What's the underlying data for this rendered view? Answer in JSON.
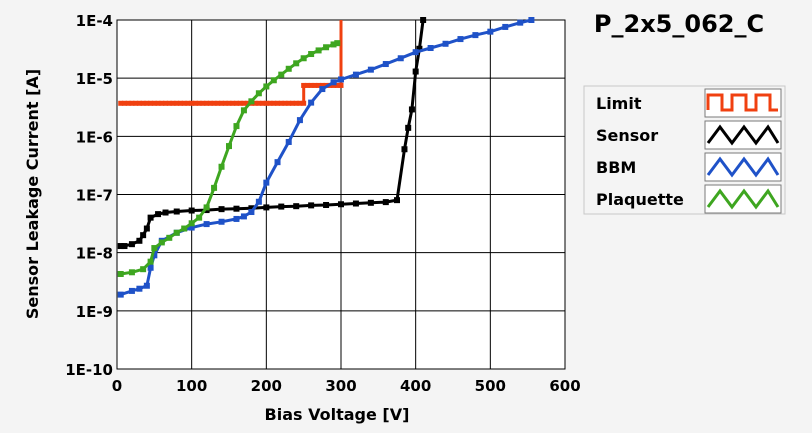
{
  "chart_data": {
    "type": "line",
    "title": "P_2x5_062_C",
    "xlabel": "Bias Voltage [V]",
    "ylabel": "Sensor Leakage Current [A]",
    "xlim": [
      0,
      600
    ],
    "ylim": [
      1e-10,
      0.0001
    ],
    "y_scale": "log",
    "grid": true,
    "legend_position": "right",
    "x_ticks": [
      0,
      100,
      200,
      300,
      400,
      500,
      600
    ],
    "x_tick_labels": [
      "0",
      "100",
      "200",
      "300",
      "400",
      "500",
      "600"
    ],
    "y_ticks": [
      1e-10,
      1e-09,
      1e-08,
      1e-07,
      1e-06,
      1e-05,
      0.0001
    ],
    "y_tick_labels": [
      "1E-10",
      "1E-9",
      "1E-8",
      "1E-7",
      "1E-6",
      "1E-5",
      "1E-4"
    ],
    "series": [
      {
        "name": "Limit",
        "color": "#f04010",
        "style": "step",
        "points": [
          [
            5,
            3.7e-06
          ],
          [
            250,
            3.7e-06
          ],
          [
            250,
            7.5e-06
          ],
          [
            300,
            7.5e-06
          ],
          [
            300,
            0.0001
          ]
        ]
      },
      {
        "name": "Sensor",
        "color": "#000000",
        "points": [
          [
            5,
            1.3e-08
          ],
          [
            10,
            1.3e-08
          ],
          [
            20,
            1.4e-08
          ],
          [
            30,
            1.6e-08
          ],
          [
            35,
            2e-08
          ],
          [
            40,
            2.6e-08
          ],
          [
            45,
            4e-08
          ],
          [
            55,
            4.6e-08
          ],
          [
            65,
            4.9e-08
          ],
          [
            80,
            5.1e-08
          ],
          [
            100,
            5.3e-08
          ],
          [
            120,
            5.4e-08
          ],
          [
            140,
            5.6e-08
          ],
          [
            160,
            5.7e-08
          ],
          [
            180,
            5.8e-08
          ],
          [
            200,
            6e-08
          ],
          [
            220,
            6.2e-08
          ],
          [
            240,
            6.3e-08
          ],
          [
            260,
            6.5e-08
          ],
          [
            280,
            6.6e-08
          ],
          [
            300,
            6.8e-08
          ],
          [
            320,
            7e-08
          ],
          [
            340,
            7.2e-08
          ],
          [
            360,
            7.4e-08
          ],
          [
            375,
            8e-08
          ],
          [
            385,
            6e-07
          ],
          [
            390,
            1.4e-06
          ],
          [
            395,
            2.9e-06
          ],
          [
            400,
            1.3e-05
          ],
          [
            405,
            3.2e-05
          ],
          [
            410,
            0.0001
          ]
        ]
      },
      {
        "name": "BBM",
        "color": "#1f52c8",
        "points": [
          [
            5,
            1.9e-09
          ],
          [
            20,
            2.2e-09
          ],
          [
            30,
            2.4e-09
          ],
          [
            40,
            2.7e-09
          ],
          [
            45,
            5.5e-09
          ],
          [
            50,
            9e-09
          ],
          [
            60,
            1.6e-08
          ],
          [
            80,
            2.2e-08
          ],
          [
            100,
            2.7e-08
          ],
          [
            120,
            3.1e-08
          ],
          [
            140,
            3.4e-08
          ],
          [
            160,
            3.8e-08
          ],
          [
            170,
            4.2e-08
          ],
          [
            180,
            5e-08
          ],
          [
            190,
            7.5e-08
          ],
          [
            200,
            1.6e-07
          ],
          [
            215,
            3.6e-07
          ],
          [
            230,
            8e-07
          ],
          [
            245,
            1.9e-06
          ],
          [
            260,
            3.8e-06
          ],
          [
            275,
            6.5e-06
          ],
          [
            290,
            8.5e-06
          ],
          [
            300,
            9.5e-06
          ],
          [
            320,
            1.15e-05
          ],
          [
            340,
            1.4e-05
          ],
          [
            360,
            1.75e-05
          ],
          [
            380,
            2.2e-05
          ],
          [
            400,
            2.8e-05
          ],
          [
            420,
            3.3e-05
          ],
          [
            440,
            3.9e-05
          ],
          [
            460,
            4.7e-05
          ],
          [
            480,
            5.5e-05
          ],
          [
            500,
            6.3e-05
          ],
          [
            520,
            7.6e-05
          ],
          [
            540,
            9e-05
          ],
          [
            555,
            0.0001
          ]
        ]
      },
      {
        "name": "Plaquette",
        "color": "#3ea620",
        "points": [
          [
            5,
            4.3e-09
          ],
          [
            20,
            4.6e-09
          ],
          [
            35,
            5.2e-09
          ],
          [
            45,
            7e-09
          ],
          [
            50,
            1.2e-08
          ],
          [
            60,
            1.5e-08
          ],
          [
            70,
            1.8e-08
          ],
          [
            80,
            2.2e-08
          ],
          [
            90,
            2.6e-08
          ],
          [
            100,
            3.2e-08
          ],
          [
            110,
            4e-08
          ],
          [
            120,
            6e-08
          ],
          [
            130,
            1.3e-07
          ],
          [
            140,
            3e-07
          ],
          [
            150,
            6.8e-07
          ],
          [
            160,
            1.5e-06
          ],
          [
            170,
            2.8e-06
          ],
          [
            180,
            4e-06
          ],
          [
            190,
            5.5e-06
          ],
          [
            200,
            7.2e-06
          ],
          [
            210,
            9.2e-06
          ],
          [
            220,
            1.15e-05
          ],
          [
            230,
            1.45e-05
          ],
          [
            240,
            1.8e-05
          ],
          [
            250,
            2.2e-05
          ],
          [
            260,
            2.6e-05
          ],
          [
            270,
            3e-05
          ],
          [
            280,
            3.4e-05
          ],
          [
            290,
            3.8e-05
          ],
          [
            295,
            4e-05
          ]
        ]
      }
    ]
  }
}
